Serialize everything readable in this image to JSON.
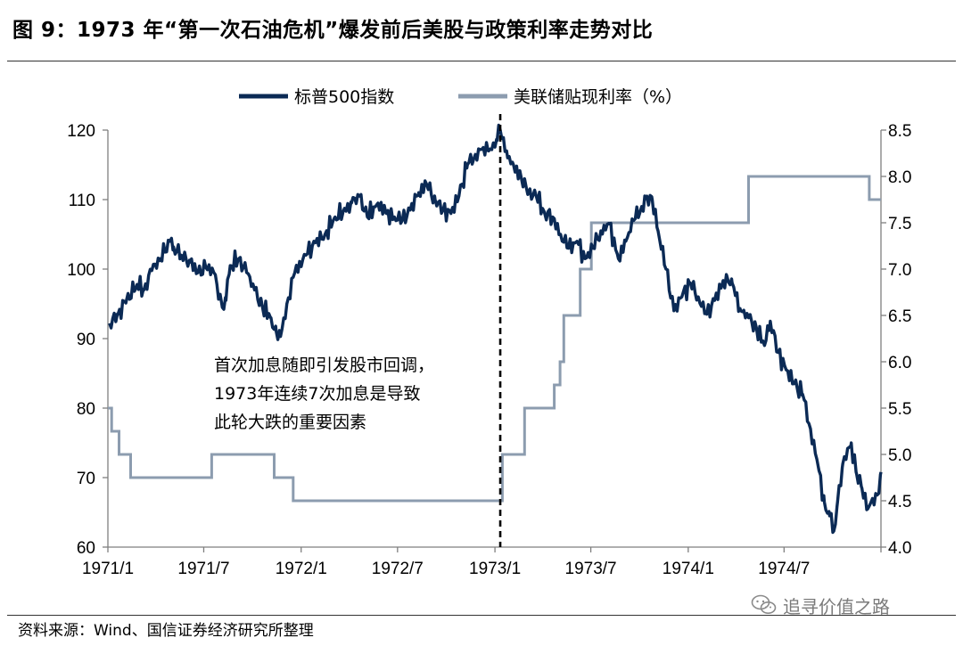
{
  "title": "图 9：1973 年“第一次石油危机”爆发前后美股与政策利率走势对比",
  "source": "资料来源：Wind、国信证券经济研究所整理",
  "watermark": {
    "text": "追寻价值之路",
    "icon": "wechat-icon"
  },
  "chart_data": {
    "type": "line",
    "title": "",
    "xlabel": "",
    "ylabel_left": "",
    "ylabel_right": "",
    "x_ticks": [
      "1971/1",
      "1971/7",
      "1972/1",
      "1972/7",
      "1973/1",
      "1973/7",
      "1974/1",
      "1974/7"
    ],
    "x_range": [
      "1971-01-01",
      "1974-12-31"
    ],
    "ylim_left": [
      60,
      120
    ],
    "yticks_left": [
      60,
      70,
      80,
      90,
      100,
      110,
      120
    ],
    "ylim_right": [
      4.0,
      8.5
    ],
    "yticks_right": [
      "4.0",
      "4.5",
      "5.0",
      "5.5",
      "6.0",
      "6.5",
      "7.0",
      "7.5",
      "8.0",
      "8.5"
    ],
    "grid": false,
    "legend_position": "top-center",
    "series": [
      {
        "name": "标普500指数",
        "axis": "left",
        "color": "#0b2a55",
        "points": [
          [
            "1971-01-04",
            92.2
          ],
          [
            "1971-01-20",
            93.5
          ],
          [
            "1971-02-05",
            95.5
          ],
          [
            "1971-02-25",
            97.8
          ],
          [
            "1971-03-10",
            97.0
          ],
          [
            "1971-03-25",
            99.8
          ],
          [
            "1971-04-10",
            101.5
          ],
          [
            "1971-04-28",
            104.0
          ],
          [
            "1971-05-05",
            103.2
          ],
          [
            "1971-05-20",
            102.0
          ],
          [
            "1971-06-05",
            101.0
          ],
          [
            "1971-06-20",
            99.5
          ],
          [
            "1971-07-05",
            100.2
          ],
          [
            "1971-07-20",
            99.5
          ],
          [
            "1971-08-05",
            94.5
          ],
          [
            "1971-08-12",
            95.5
          ],
          [
            "1971-08-20",
            100.5
          ],
          [
            "1971-09-05",
            101.5
          ],
          [
            "1971-09-20",
            99.5
          ],
          [
            "1971-10-05",
            97.0
          ],
          [
            "1971-10-20",
            94.5
          ],
          [
            "1971-11-05",
            93.0
          ],
          [
            "1971-11-15",
            91.0
          ],
          [
            "1971-11-23",
            90.3
          ],
          [
            "1971-12-05",
            95.0
          ],
          [
            "1971-12-20",
            99.5
          ],
          [
            "1972-01-10",
            102.0
          ],
          [
            "1972-01-28",
            103.8
          ],
          [
            "1972-02-15",
            105.0
          ],
          [
            "1972-03-05",
            107.5
          ],
          [
            "1972-03-20",
            108.2
          ],
          [
            "1972-04-05",
            109.5
          ],
          [
            "1972-04-20",
            110.5
          ],
          [
            "1972-05-05",
            107.5
          ],
          [
            "1972-05-25",
            109.5
          ],
          [
            "1972-06-10",
            108.0
          ],
          [
            "1972-06-25",
            107.5
          ],
          [
            "1972-07-10",
            107.0
          ],
          [
            "1972-07-25",
            108.5
          ],
          [
            "1972-08-10",
            111.0
          ],
          [
            "1972-08-25",
            112.2
          ],
          [
            "1972-09-10",
            110.0
          ],
          [
            "1972-09-25",
            108.5
          ],
          [
            "1972-10-10",
            108.0
          ],
          [
            "1972-10-25",
            110.5
          ],
          [
            "1972-11-10",
            115.0
          ],
          [
            "1972-11-25",
            116.5
          ],
          [
            "1972-12-10",
            117.5
          ],
          [
            "1972-12-20",
            117.0
          ],
          [
            "1973-01-05",
            118.5
          ],
          [
            "1973-01-11",
            120.0
          ],
          [
            "1973-01-25",
            116.0
          ],
          [
            "1973-02-05",
            115.0
          ],
          [
            "1973-02-20",
            113.0
          ],
          [
            "1973-03-05",
            111.0
          ],
          [
            "1973-03-20",
            110.5
          ],
          [
            "1973-04-05",
            108.0
          ],
          [
            "1973-04-20",
            107.5
          ],
          [
            "1973-05-05",
            105.0
          ],
          [
            "1973-05-20",
            103.0
          ],
          [
            "1973-06-05",
            104.0
          ],
          [
            "1973-06-20",
            101.5
          ],
          [
            "1973-07-05",
            103.0
          ],
          [
            "1973-07-20",
            105.5
          ],
          [
            "1973-08-05",
            106.5
          ],
          [
            "1973-08-22",
            101.5
          ],
          [
            "1973-09-05",
            104.0
          ],
          [
            "1973-09-20",
            107.0
          ],
          [
            "1973-10-05",
            109.0
          ],
          [
            "1973-10-15",
            110.5
          ],
          [
            "1973-10-25",
            110.0
          ],
          [
            "1973-11-05",
            105.5
          ],
          [
            "1973-11-20",
            100.0
          ],
          [
            "1973-12-05",
            94.0
          ],
          [
            "1973-12-20",
            96.0
          ],
          [
            "1974-01-05",
            98.0
          ],
          [
            "1974-01-20",
            96.0
          ],
          [
            "1974-02-05",
            93.5
          ],
          [
            "1974-02-20",
            95.5
          ],
          [
            "1974-03-05",
            97.5
          ],
          [
            "1974-03-15",
            99.0
          ],
          [
            "1974-03-25",
            98.0
          ],
          [
            "1974-04-10",
            94.0
          ],
          [
            "1974-04-25",
            93.0
          ],
          [
            "1974-05-10",
            91.5
          ],
          [
            "1974-05-25",
            89.0
          ],
          [
            "1974-06-05",
            92.5
          ],
          [
            "1974-06-20",
            88.0
          ],
          [
            "1974-07-05",
            85.5
          ],
          [
            "1974-07-20",
            83.5
          ],
          [
            "1974-08-05",
            82.0
          ],
          [
            "1974-08-20",
            77.0
          ],
          [
            "1974-09-05",
            71.0
          ],
          [
            "1974-09-15",
            66.5
          ],
          [
            "1974-09-25",
            64.5
          ],
          [
            "1974-10-03",
            62.3
          ],
          [
            "1974-10-10",
            66.5
          ],
          [
            "1974-10-20",
            72.0
          ],
          [
            "1974-11-05",
            75.0
          ],
          [
            "1974-11-15",
            70.5
          ],
          [
            "1974-11-25",
            68.5
          ],
          [
            "1974-12-06",
            65.5
          ],
          [
            "1974-12-15",
            67.0
          ],
          [
            "1974-12-24",
            67.5
          ],
          [
            "1974-12-31",
            70.8
          ]
        ]
      },
      {
        "name": "美联储贴现利率（%）",
        "axis": "right",
        "color": "#8c9caf",
        "steps": [
          [
            "1971-01-01",
            5.5
          ],
          [
            "1971-01-08",
            5.25
          ],
          [
            "1971-01-22",
            5.0
          ],
          [
            "1971-02-13",
            4.75
          ],
          [
            "1971-07-16",
            5.0
          ],
          [
            "1971-11-11",
            4.75
          ],
          [
            "1971-12-17",
            4.5
          ],
          [
            "1973-01-15",
            5.0
          ],
          [
            "1973-02-26",
            5.5
          ],
          [
            "1973-04-23",
            5.75
          ],
          [
            "1973-05-04",
            6.0
          ],
          [
            "1973-05-11",
            6.5
          ],
          [
            "1973-06-11",
            7.0
          ],
          [
            "1973-07-02",
            7.5
          ],
          [
            "1973-08-14",
            7.5
          ],
          [
            "1974-04-25",
            8.0
          ],
          [
            "1974-12-09",
            7.75
          ]
        ]
      }
    ],
    "annotations": [
      {
        "type": "vline",
        "x": "1973-01-11",
        "style": "dashed",
        "color": "#000000"
      },
      {
        "type": "text",
        "lines": [
          "首次加息随即引发股市回调，",
          "1973年连续7次加息是导致",
          "此轮大跌的重要因素"
        ]
      }
    ]
  }
}
